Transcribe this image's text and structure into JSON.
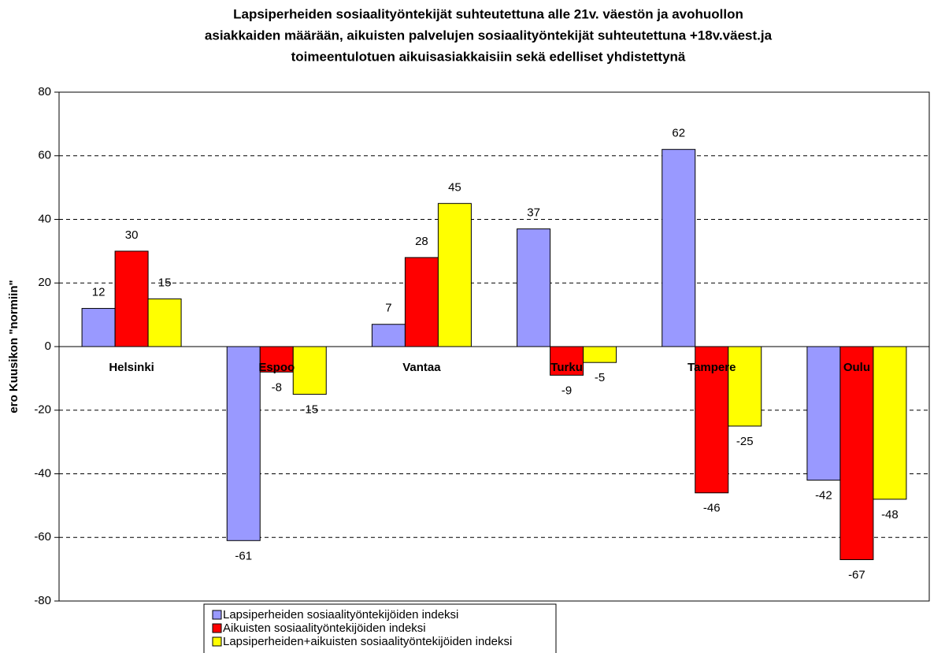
{
  "chart_data": {
    "type": "bar",
    "title": [
      "Lapsiperheiden sosiaalityöntekijät  suhteutettuna alle 21v. väestön ja avohuollon",
      "asiakkaiden määrään, aikuisten palvelujen sosiaalityöntekijät suhteutettuna +18v.väest.ja",
      "toimeentulotuen aikuisasiakkaisiin  sekä edelliset yhdistettynä"
    ],
    "y_label": "ero Kuusikon \"normiin\"",
    "categories": [
      "Helsinki",
      "Espoo",
      "Vantaa",
      "Turku",
      "Tampere",
      "Oulu"
    ],
    "series": [
      {
        "name": "Lapsiperheiden sosiaalityöntekijöiden indeksi",
        "color": "#9999ff",
        "values": [
          12,
          -61,
          7,
          37,
          62,
          -42
        ]
      },
      {
        "name": "Aikuisten sosiaalityöntekijöiden indeksi",
        "color": "#ff0000",
        "values": [
          30,
          -8,
          28,
          -9,
          -46,
          -67
        ]
      },
      {
        "name": "Lapsiperheiden+aikuisten sosiaalityöntekijöiden indeksi",
        "color": "#ffff00",
        "values": [
          15,
          -15,
          45,
          -5,
          -25,
          -48
        ]
      }
    ],
    "ylim": [
      -80,
      80
    ],
    "yticks": [
      -80,
      -60,
      -40,
      -20,
      0,
      20,
      40,
      60,
      80
    ],
    "grid": true,
    "legend": "bottom"
  }
}
